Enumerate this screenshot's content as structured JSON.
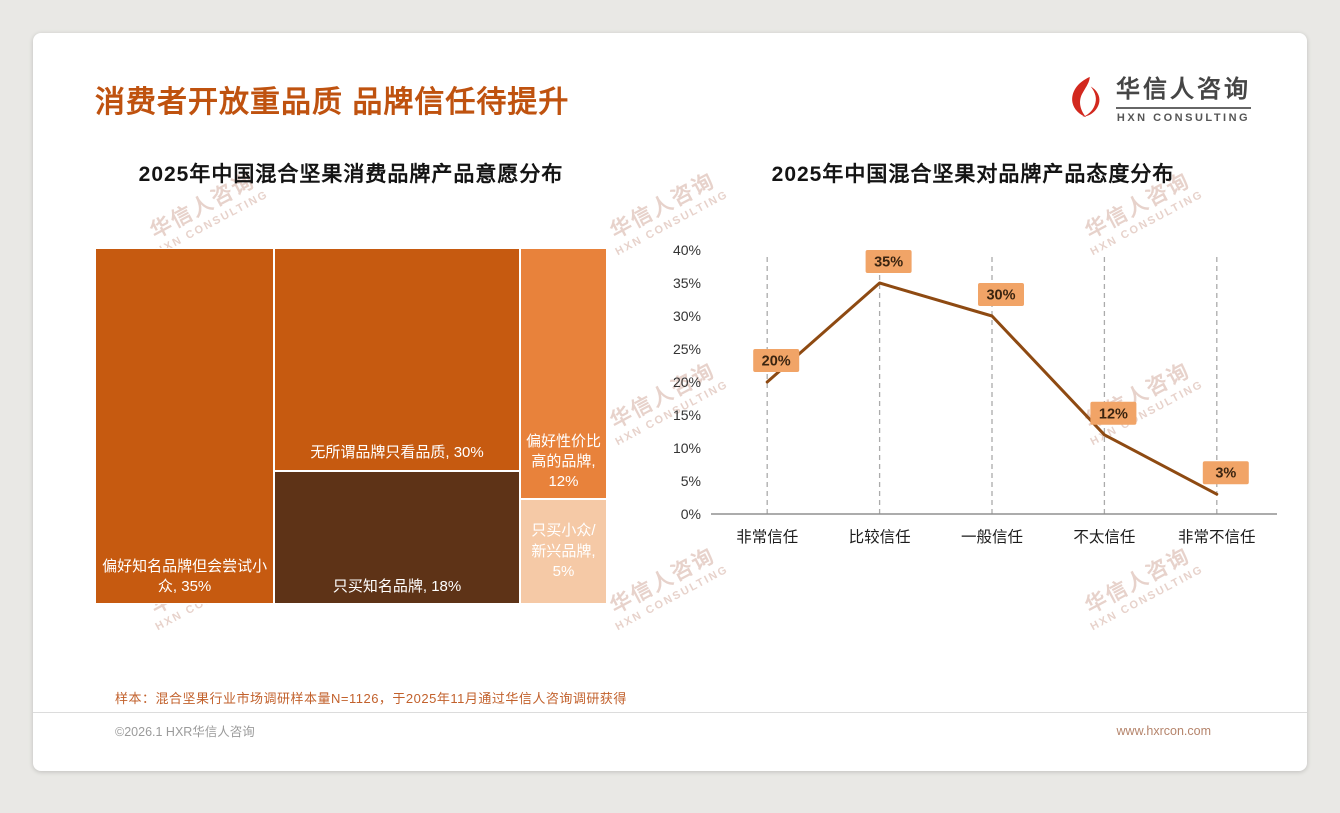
{
  "page": {
    "title": "消费者开放重品质 品牌信任待提升",
    "logo": {
      "name": "华信人咨询",
      "sub": "HXN CONSULTING"
    },
    "watermark": {
      "line1": "华信人咨询",
      "line2": "HXN CONSULTING"
    },
    "footnote": "样本：混合坚果行业市场调研样本量N=1126，于2025年11月通过华信人咨询调研获得",
    "copyright": "©2026.1 HXR华信人咨询",
    "website": "www.hxrcon.com"
  },
  "colors": {
    "title": "#BF520F",
    "logo_red": "#D2281E",
    "footnote": "#C2612C"
  },
  "chart_data": [
    {
      "type": "treemap",
      "title": "2025年中国混合坚果消费品牌产品意愿分布",
      "columns": [
        [
          0
        ],
        [
          1,
          2
        ],
        [
          3,
          4
        ]
      ],
      "items": [
        {
          "label": "偏好知名品牌但会尝试小众",
          "value": 35,
          "color": "#C65A10",
          "text_pos": "bottom"
        },
        {
          "label": "无所谓品牌只看品质",
          "value": 30,
          "color": "#C65A10",
          "text_pos": "bottom"
        },
        {
          "label": "只买知名品牌",
          "value": 18,
          "color": "#5E3317",
          "text_pos": "bottom"
        },
        {
          "label": "偏好性价比高的品牌",
          "value": 12,
          "color": "#E8823B",
          "text_pos": "bottom"
        },
        {
          "label": "只买小众/新兴品牌",
          "value": 5,
          "color": "#F5C9A6",
          "text_pos": "center"
        }
      ]
    },
    {
      "type": "line",
      "title": "2025年中国混合坚果对品牌产品态度分布",
      "categories": [
        "非常信任",
        "比较信任",
        "一般信任",
        "不太信任",
        "非常不信任"
      ],
      "values": [
        20,
        35,
        30,
        12,
        3
      ],
      "ylim": [
        0,
        40
      ],
      "ytick_step": 5,
      "grid": "vertical-dashed",
      "line_color": "#8E4A12",
      "label_bg": "#F1A467",
      "label_text_color": "#3A2410"
    }
  ]
}
